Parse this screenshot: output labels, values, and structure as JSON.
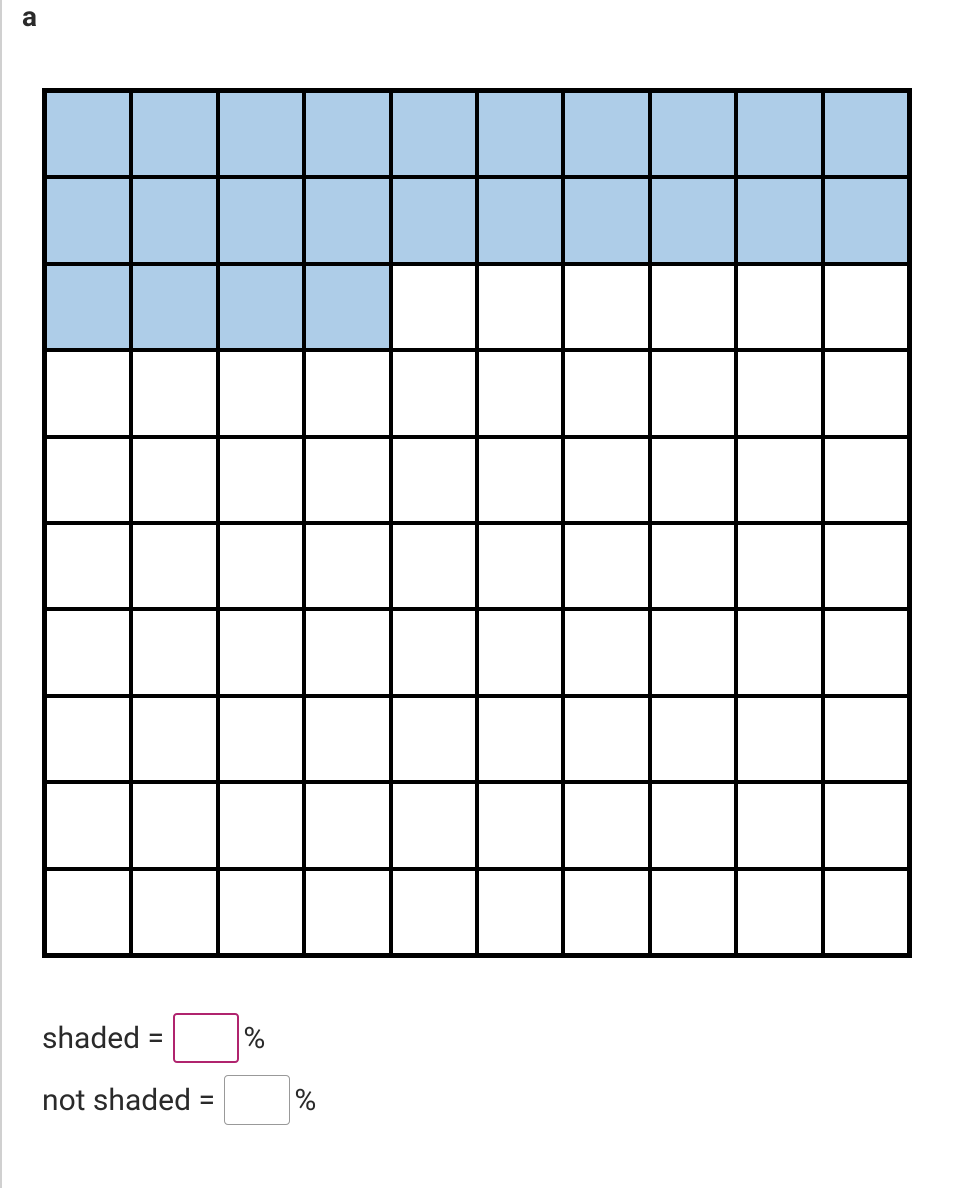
{
  "problem": {
    "label": "a"
  },
  "grid": {
    "rows": 10,
    "cols": 10,
    "shaded_count": 24,
    "shaded_color": "#aecde8",
    "unshaded_color": "#ffffff",
    "border_color": "#000000",
    "outer_border_width": 3,
    "inner_border_width": 2
  },
  "answers": {
    "shaded": {
      "label": "shaded = ",
      "value": "",
      "suffix": "%",
      "active": true
    },
    "not_shaded": {
      "label": "not shaded = ",
      "value": "",
      "suffix": "%",
      "active": false
    }
  },
  "styling": {
    "background_color": "#ffffff",
    "left_border_color": "#d0d0d0",
    "text_color": "#2a2a2a",
    "active_border_color": "#b0246e",
    "inactive_border_color": "#999999",
    "label_fontsize": 28,
    "answer_fontsize": 30
  }
}
